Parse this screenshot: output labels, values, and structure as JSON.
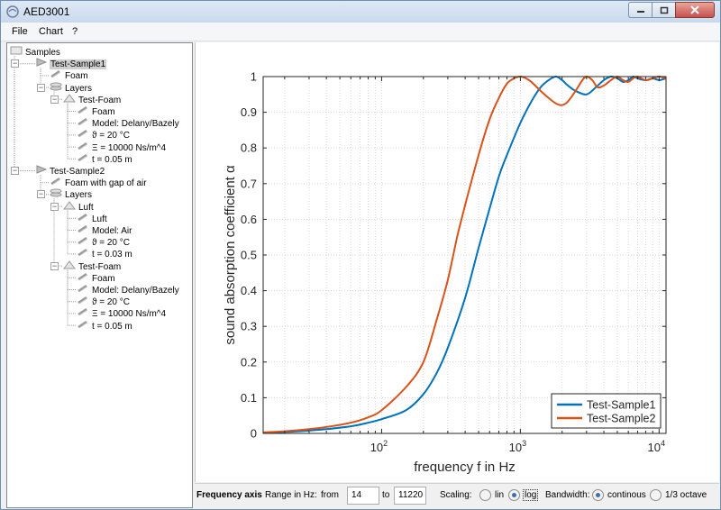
{
  "window": {
    "title": "AED3001"
  },
  "menu": [
    {
      "label": "File"
    },
    {
      "label": "Chart"
    },
    {
      "label": "?"
    }
  ],
  "tree": [
    {
      "label": "Samples",
      "level": 0,
      "icon": "folder-icon"
    },
    {
      "label": "Test-Sample1",
      "level": 1,
      "icon": "sample-icon",
      "expander": "minus",
      "selected": true
    },
    {
      "label": "Foam",
      "level": 2,
      "icon": "material-icon"
    },
    {
      "label": "Layers",
      "level": 2,
      "icon": "layers-icon",
      "expander": "minus"
    },
    {
      "label": "Test-Foam",
      "level": 3,
      "icon": "layer-icon",
      "expander": "minus"
    },
    {
      "label": "Foam",
      "level": 4,
      "icon": "material-icon"
    },
    {
      "label": "Model: Delany/Bazely",
      "level": 4,
      "icon": "material-icon"
    },
    {
      "label": "ϑ = 20 °C",
      "level": 4,
      "icon": "material-icon"
    },
    {
      "label": "Ξ = 10000 Ns/m^4",
      "level": 4,
      "icon": "material-icon"
    },
    {
      "label": "t = 0.05 m",
      "level": 4,
      "icon": "material-icon"
    },
    {
      "label": "Test-Sample2",
      "level": 1,
      "icon": "sample-icon",
      "expander": "minus"
    },
    {
      "label": "Foam with gap of air",
      "level": 2,
      "icon": "material-icon"
    },
    {
      "label": "Layers",
      "level": 2,
      "icon": "layers-icon",
      "expander": "minus"
    },
    {
      "label": "Luft",
      "level": 3,
      "icon": "layer-icon",
      "expander": "minus"
    },
    {
      "label": "Luft",
      "level": 4,
      "icon": "material-icon"
    },
    {
      "label": "Model: Air",
      "level": 4,
      "icon": "material-icon"
    },
    {
      "label": "ϑ = 20 °C",
      "level": 4,
      "icon": "material-icon"
    },
    {
      "label": "t = 0.03 m",
      "level": 4,
      "icon": "material-icon"
    },
    {
      "label": "Test-Foam",
      "level": 3,
      "icon": "layer-icon",
      "expander": "minus"
    },
    {
      "label": "Foam",
      "level": 4,
      "icon": "material-icon"
    },
    {
      "label": "Model: Delany/Bazely",
      "level": 4,
      "icon": "material-icon"
    },
    {
      "label": "ϑ = 20 °C",
      "level": 4,
      "icon": "material-icon"
    },
    {
      "label": "Ξ = 10000 Ns/m^4",
      "level": 4,
      "icon": "material-icon"
    },
    {
      "label": "t = 0.05 m",
      "level": 4,
      "icon": "material-icon"
    }
  ],
  "bottom": {
    "section_label": "Frequency axis",
    "range_label": "Range in Hz:",
    "from_label": "from",
    "from_value": "14",
    "to_label": "to",
    "to_value": "11220",
    "scaling_label": "Scaling:",
    "scaling_lin": "lin",
    "scaling_log": "log",
    "scaling_selected": "log",
    "bandwidth_label": "Bandwidth:",
    "bandwidth_continuous": "continous",
    "bandwidth_third": "1/3 octave",
    "bandwidth_selected": "continous"
  },
  "chart_data": {
    "type": "line",
    "xlabel": "frequency f in Hz",
    "ylabel": "sound absorption coefficient α",
    "xscale": "log",
    "xlim": [
      14,
      11220
    ],
    "ylim": [
      0,
      1
    ],
    "xticks": [
      100,
      1000,
      10000
    ],
    "xtick_labels": [
      {
        "base": "10",
        "exp": "2"
      },
      {
        "base": "10",
        "exp": "3"
      },
      {
        "base": "10",
        "exp": "4"
      }
    ],
    "yticks": [
      0,
      0.1,
      0.2,
      0.3,
      0.4,
      0.5,
      0.6,
      0.7,
      0.8,
      0.9,
      1
    ],
    "ytick_labels": [
      "0",
      "0.1",
      "0.2",
      "0.3",
      "0.4",
      "0.5",
      "0.6",
      "0.7",
      "0.8",
      "0.9",
      "1"
    ],
    "grid": true,
    "legend_position": "bottom-right",
    "series": [
      {
        "name": "Test-Sample1",
        "color": "#0072bd",
        "x": [
          14,
          20,
          30,
          40,
          60,
          80,
          100,
          150,
          200,
          250,
          300,
          400,
          500,
          600,
          700,
          800,
          1000,
          1200,
          1400,
          1600,
          1800,
          2000,
          2200,
          2500,
          3000,
          3500,
          4000,
          4500,
          5000,
          5500,
          6000,
          6500,
          7000,
          8000,
          9000,
          10000,
          11220
        ],
        "y": [
          0.002,
          0.004,
          0.008,
          0.012,
          0.02,
          0.03,
          0.04,
          0.065,
          0.11,
          0.17,
          0.24,
          0.38,
          0.52,
          0.63,
          0.72,
          0.78,
          0.87,
          0.93,
          0.97,
          0.99,
          1.0,
          0.99,
          0.975,
          0.96,
          0.95,
          0.97,
          0.99,
          1.0,
          0.995,
          0.985,
          0.99,
          1.0,
          0.995,
          0.99,
          0.995,
          0.99,
          0.995
        ]
      },
      {
        "name": "Test-Sample2",
        "color": "#d95319",
        "x": [
          14,
          20,
          30,
          40,
          60,
          80,
          100,
          150,
          200,
          250,
          300,
          350,
          400,
          500,
          600,
          700,
          800,
          900,
          1000,
          1100,
          1200,
          1400,
          1600,
          1800,
          2000,
          2200,
          2500,
          2800,
          3000,
          3300,
          3600,
          4000,
          4500,
          5000,
          5500,
          6000,
          6500,
          7000,
          8000,
          9000,
          10000,
          11220
        ],
        "y": [
          0.003,
          0.006,
          0.012,
          0.018,
          0.03,
          0.045,
          0.065,
          0.13,
          0.2,
          0.32,
          0.43,
          0.55,
          0.64,
          0.78,
          0.88,
          0.94,
          0.98,
          0.995,
          1.0,
          0.995,
          0.985,
          0.96,
          0.94,
          0.925,
          0.92,
          0.93,
          0.96,
          0.99,
          1.0,
          0.99,
          0.97,
          0.975,
          0.99,
          1.0,
          0.99,
          0.985,
          0.995,
          1.0,
          0.99,
          0.995,
          1.0,
          0.995
        ]
      }
    ]
  }
}
